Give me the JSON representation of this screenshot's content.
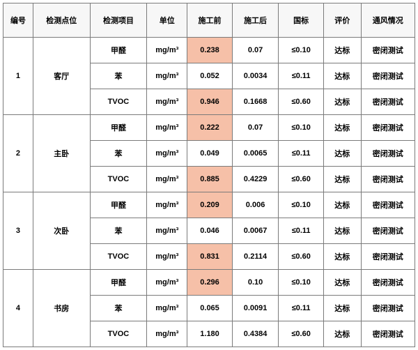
{
  "headers": [
    "编号",
    "检测点位",
    "检测项目",
    "单位",
    "施工前",
    "施工后",
    "国标",
    "评价",
    "通风情况"
  ],
  "unit": "mg/m³",
  "highlight_color": "#f6c0a8",
  "groups": [
    {
      "id": "1",
      "location": "客厅",
      "rows": [
        {
          "item": "甲醛",
          "before": "0.238",
          "after": "0.07",
          "std": "≤0.10",
          "eval": "达标",
          "vent": "密闭测试",
          "hl": true
        },
        {
          "item": "苯",
          "before": "0.052",
          "after": "0.0034",
          "std": "≤0.11",
          "eval": "达标",
          "vent": "密闭测试",
          "hl": false
        },
        {
          "item": "TVOC",
          "before": "0.946",
          "after": "0.1668",
          "std": "≤0.60",
          "eval": "达标",
          "vent": "密闭测试",
          "hl": true
        }
      ]
    },
    {
      "id": "2",
      "location": "主卧",
      "rows": [
        {
          "item": "甲醛",
          "before": "0.222",
          "after": "0.07",
          "std": "≤0.10",
          "eval": "达标",
          "vent": "密闭测试",
          "hl": true
        },
        {
          "item": "苯",
          "before": "0.049",
          "after": "0.0065",
          "std": "≤0.11",
          "eval": "达标",
          "vent": "密闭测试",
          "hl": false
        },
        {
          "item": "TVOC",
          "before": "0.885",
          "after": "0.4229",
          "std": "≤0.60",
          "eval": "达标",
          "vent": "密闭测试",
          "hl": true
        }
      ]
    },
    {
      "id": "3",
      "location": "次卧",
      "rows": [
        {
          "item": "甲醛",
          "before": "0.209",
          "after": "0.006",
          "std": "≤0.10",
          "eval": "达标",
          "vent": "密闭测试",
          "hl": true
        },
        {
          "item": "苯",
          "before": "0.046",
          "after": "0.0067",
          "std": "≤0.11",
          "eval": "达标",
          "vent": "密闭测试",
          "hl": false
        },
        {
          "item": "TVOC",
          "before": "0.831",
          "after": "0.2114",
          "std": "≤0.60",
          "eval": "达标",
          "vent": "密闭测试",
          "hl": true
        }
      ]
    },
    {
      "id": "4",
      "location": "书房",
      "rows": [
        {
          "item": "甲醛",
          "before": "0.296",
          "after": "0.10",
          "std": "≤0.10",
          "eval": "达标",
          "vent": "密闭测试",
          "hl": true
        },
        {
          "item": "苯",
          "before": "0.065",
          "after": "0.0091",
          "std": "≤0.11",
          "eval": "达标",
          "vent": "密闭测试",
          "hl": false
        },
        {
          "item": "TVOC",
          "before": "1.180",
          "after": "0.4384",
          "std": "≤0.60",
          "eval": "达标",
          "vent": "密闭测试",
          "hl": false
        }
      ]
    }
  ]
}
